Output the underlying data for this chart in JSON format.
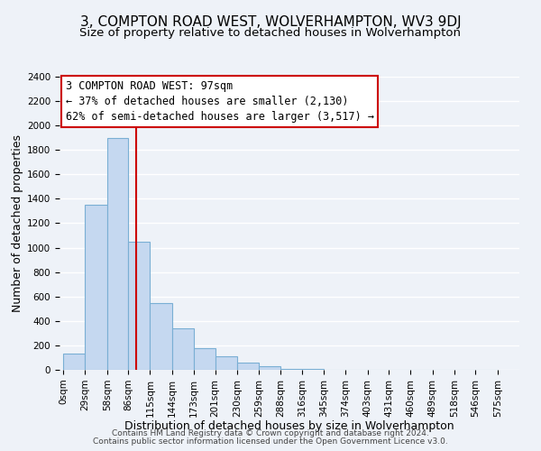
{
  "title": "3, COMPTON ROAD WEST, WOLVERHAMPTON, WV3 9DJ",
  "subtitle": "Size of property relative to detached houses in Wolverhampton",
  "xlabel": "Distribution of detached houses by size in Wolverhampton",
  "ylabel": "Number of detached properties",
  "bar_values": [
    130,
    1350,
    1900,
    1050,
    550,
    340,
    175,
    110,
    60,
    30,
    5,
    5,
    3,
    2,
    2,
    2,
    2,
    2,
    2,
    2
  ],
  "bar_left_edges": [
    0,
    29,
    58,
    86,
    115,
    144,
    173,
    201,
    230,
    259,
    288,
    316,
    345,
    374,
    403,
    431,
    460,
    489,
    518,
    546
  ],
  "bar_widths": [
    29,
    29,
    28,
    29,
    29,
    29,
    28,
    29,
    29,
    29,
    28,
    29,
    29,
    29,
    28,
    29,
    29,
    29,
    28,
    29
  ],
  "xtick_labels": [
    "0sqm",
    "29sqm",
    "58sqm",
    "86sqm",
    "115sqm",
    "144sqm",
    "173sqm",
    "201sqm",
    "230sqm",
    "259sqm",
    "288sqm",
    "316sqm",
    "345sqm",
    "374sqm",
    "403sqm",
    "431sqm",
    "460sqm",
    "489sqm",
    "518sqm",
    "546sqm",
    "575sqm"
  ],
  "xtick_positions": [
    0,
    29,
    58,
    86,
    115,
    144,
    173,
    201,
    230,
    259,
    288,
    316,
    345,
    374,
    403,
    431,
    460,
    489,
    518,
    546,
    575
  ],
  "bar_color": "#c5d8f0",
  "bar_edge_color": "#7aafd4",
  "vline_x": 97,
  "vline_color": "#cc0000",
  "ylim": [
    0,
    2400
  ],
  "yticks": [
    0,
    200,
    400,
    600,
    800,
    1000,
    1200,
    1400,
    1600,
    1800,
    2000,
    2200,
    2400
  ],
  "annotation_text": "3 COMPTON ROAD WEST: 97sqm\n← 37% of detached houses are smaller (2,130)\n62% of semi-detached houses are larger (3,517) →",
  "footer_line1": "Contains HM Land Registry data © Crown copyright and database right 2024.",
  "footer_line2": "Contains public sector information licensed under the Open Government Licence v3.0.",
  "bg_color": "#eef2f8",
  "grid_color": "#ffffff",
  "title_fontsize": 11,
  "subtitle_fontsize": 9.5,
  "axis_label_fontsize": 9,
  "tick_fontsize": 7.5,
  "annotation_fontsize": 8.5,
  "footer_fontsize": 6.5
}
